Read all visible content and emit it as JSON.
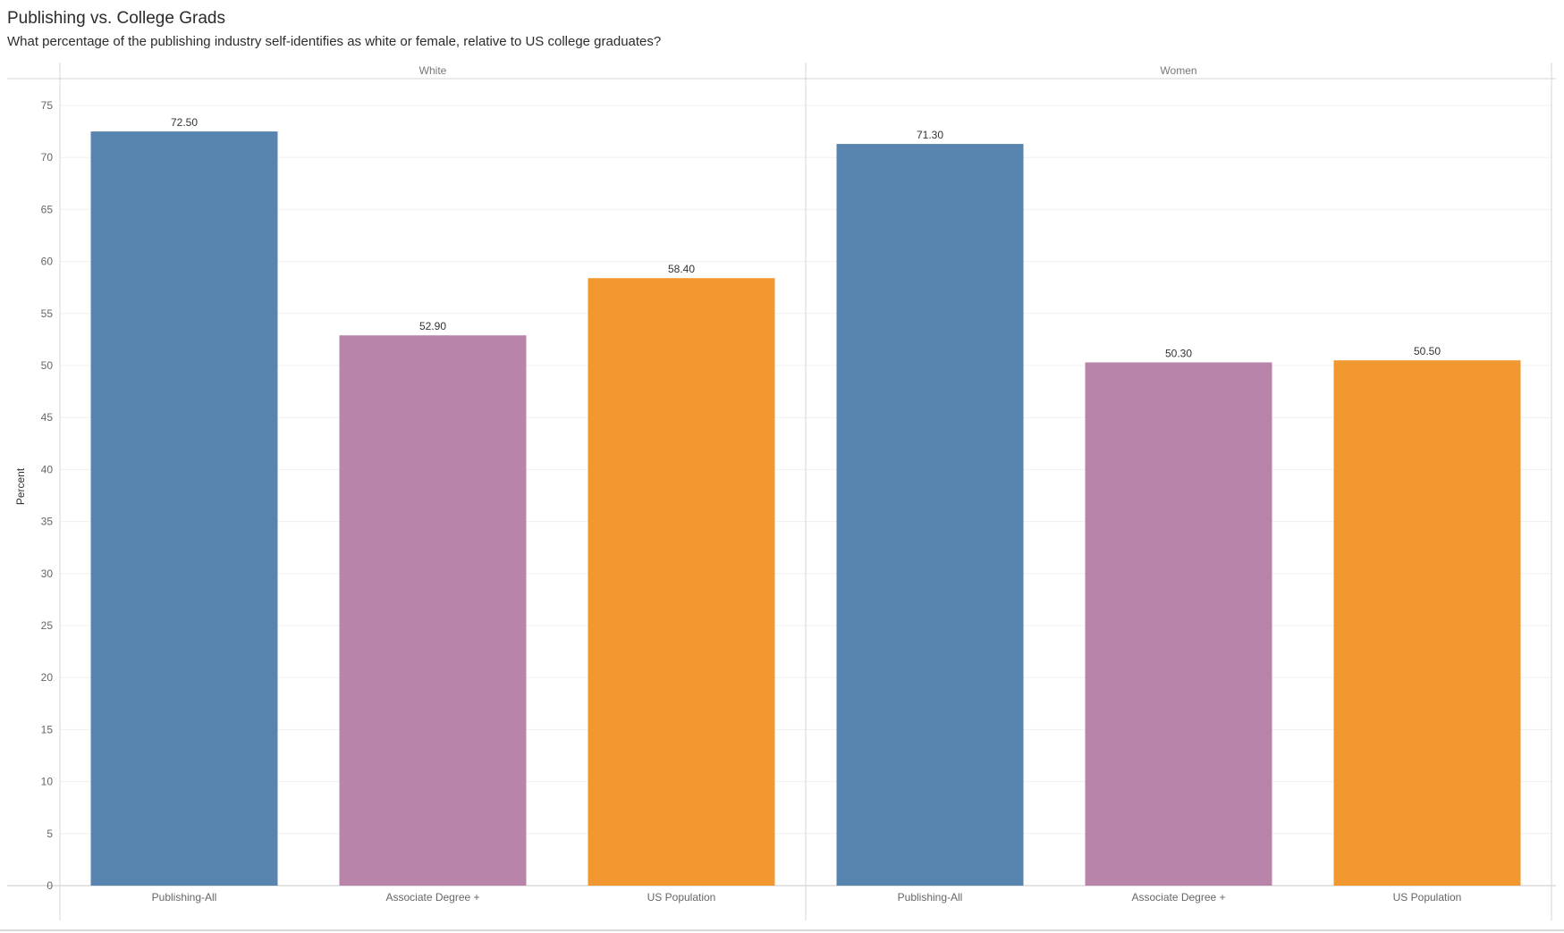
{
  "title": "Publishing vs. College Grads",
  "subtitle": "What percentage of the publishing industry self-identifies as white or female, relative to US college graduates?",
  "colors": {
    "Publishing-All": "#5884b0",
    "Associate Degree +": "#b884aa",
    "US Population": "#f29831",
    "grid": "#f0f0f0",
    "divider": "#d4d4d4"
  },
  "chart_data": {
    "type": "bar",
    "title": "Publishing vs. College Grads",
    "subtitle": "What percentage of the publishing industry self-identifies as white or female, relative to US college graduates?",
    "ylabel": "Percent",
    "xlabel": "",
    "ylim": [
      0,
      78
    ],
    "yticks": [
      0,
      5,
      10,
      15,
      20,
      25,
      30,
      35,
      40,
      45,
      50,
      55,
      60,
      65,
      70,
      75
    ],
    "grid": true,
    "legend": "none",
    "panels": [
      {
        "name": "White",
        "categories": [
          "Publishing-All",
          "Associate Degree +",
          "US Population"
        ],
        "values": [
          72.5,
          52.9,
          58.4
        ],
        "labels": [
          "72.50",
          "52.90",
          "58.40"
        ]
      },
      {
        "name": "Women",
        "categories": [
          "Publishing-All",
          "Associate Degree +",
          "US Population"
        ],
        "values": [
          71.3,
          50.3,
          50.5
        ],
        "labels": [
          "71.30",
          "50.30",
          "50.50"
        ]
      }
    ]
  }
}
